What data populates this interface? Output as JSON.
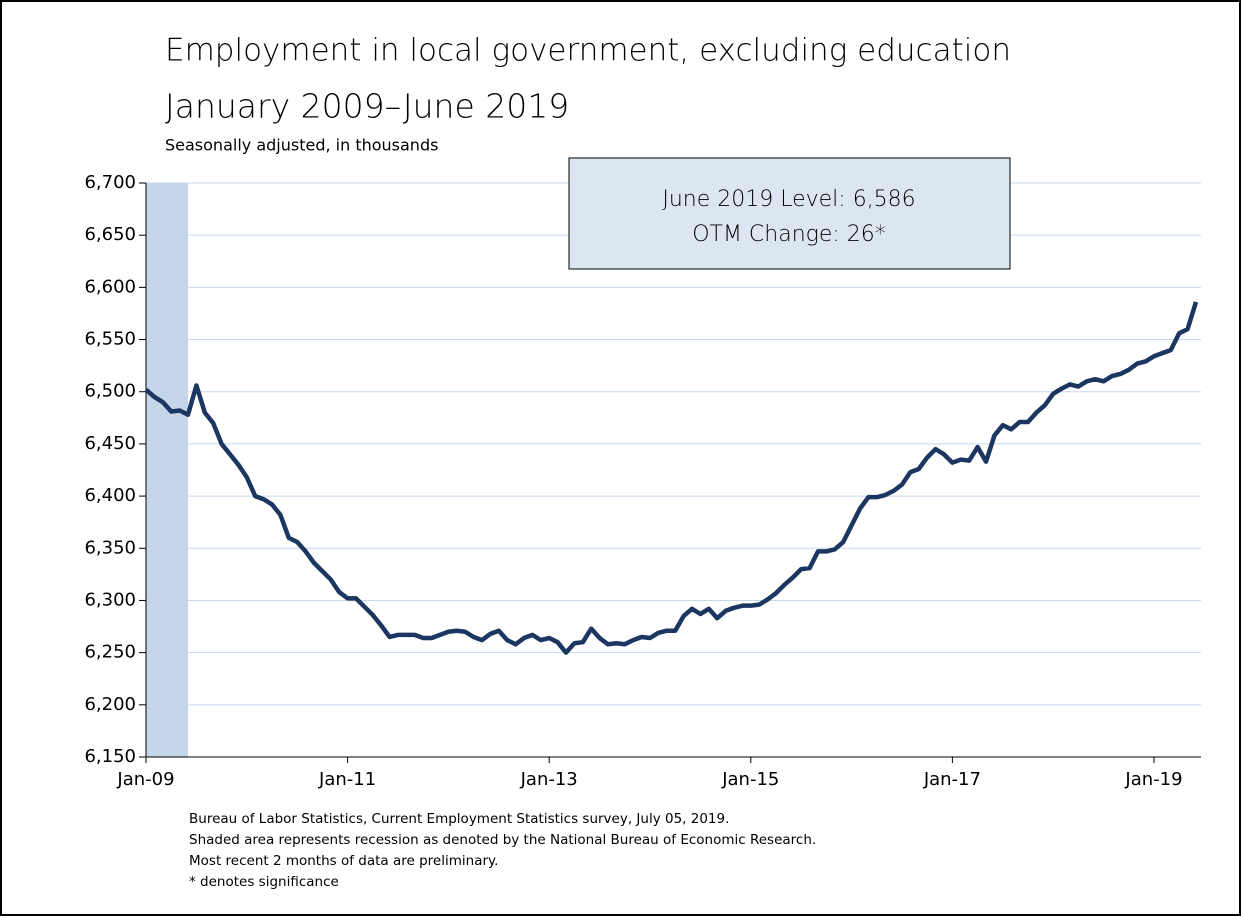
{
  "chart_data": {
    "type": "line",
    "title": "Employment in local government, excluding education",
    "subtitle": "January 2009–June 2019",
    "y_label": "Seasonally adjusted, in thousands",
    "annotations": [
      "June 2019 Level: 6,586",
      "OTM Change: 26*"
    ],
    "footnotes": [
      "Bureau of Labor Statistics, Current Employment Statistics survey, July 05, 2019.",
      "Shaded area represents recession as denoted by the National Bureau of Economic Research.",
      "Most recent 2 months of data are preliminary.",
      "* denotes significance"
    ],
    "categories": [
      "Jan-09",
      null,
      null,
      null,
      null,
      null,
      null,
      null,
      null,
      null,
      null,
      null,
      null,
      null,
      null,
      null,
      null,
      null,
      null,
      null,
      null,
      null,
      null,
      null,
      "Jan-11",
      null,
      null,
      null,
      null,
      null,
      null,
      null,
      null,
      null,
      null,
      null,
      null,
      null,
      null,
      null,
      null,
      null,
      null,
      null,
      null,
      null,
      null,
      null,
      "Jan-13",
      null,
      null,
      null,
      null,
      null,
      null,
      null,
      null,
      null,
      null,
      null,
      null,
      null,
      null,
      null,
      null,
      null,
      null,
      null,
      null,
      null,
      null,
      null,
      "Jan-15",
      null,
      null,
      null,
      null,
      null,
      null,
      null,
      null,
      null,
      null,
      null,
      null,
      null,
      null,
      null,
      null,
      null,
      null,
      null,
      null,
      null,
      null,
      null,
      "Jan-17",
      null,
      null,
      null,
      null,
      null,
      null,
      null,
      null,
      null,
      null,
      null,
      null,
      null,
      null,
      null,
      null,
      null,
      null,
      null,
      null,
      null,
      null,
      null,
      "Jan-19",
      null,
      null,
      null,
      null,
      null
    ],
    "series": [
      {
        "name": "Employment",
        "color": "#1b3660",
        "values": [
          6502,
          6495,
          6490,
          6481,
          6482,
          6478,
          6506,
          6480,
          6470,
          6450,
          6440,
          6430,
          6418,
          6400,
          6397,
          6392,
          6382,
          6360,
          6356,
          6347,
          6336,
          6328,
          6320,
          6308,
          6302,
          6302,
          6294,
          6286,
          6276,
          6265,
          6267,
          6267,
          6267,
          6264,
          6264,
          6267,
          6270,
          6271,
          6270,
          6265,
          6262,
          6268,
          6271,
          6262,
          6258,
          6264,
          6267,
          6262,
          6264,
          6260,
          6250,
          6259,
          6260,
          6273,
          6264,
          6258,
          6259,
          6258,
          6262,
          6265,
          6264,
          6269,
          6271,
          6271,
          6285,
          6292,
          6287,
          6292,
          6283,
          6290,
          6293,
          6295,
          6295,
          6296,
          6301,
          6307,
          6315,
          6322,
          6330,
          6331,
          6347,
          6347,
          6349,
          6356,
          6372,
          6388,
          6399,
          6399,
          6401,
          6405,
          6411,
          6423,
          6426,
          6437,
          6445,
          6440,
          6432,
          6435,
          6434,
          6447,
          6433,
          6458,
          6468,
          6464,
          6471,
          6471,
          6480,
          6487,
          6498,
          6503,
          6507,
          6505,
          6510,
          6512,
          6510,
          6515,
          6517,
          6521,
          6527,
          6529,
          6534,
          6537,
          6540,
          6556,
          6560,
          6586
        ]
      }
    ],
    "shading": [
      0,
      5
    ],
    "shading_color": "#c5d5ea",
    "ylim": [
      6150,
      6700
    ],
    "yticks": [
      {
        "value": 6150,
        "label": "6,150"
      },
      {
        "value": 6200,
        "label": "6,200"
      },
      {
        "value": 6250,
        "label": "6,250"
      },
      {
        "value": 6300,
        "label": "6,300"
      },
      {
        "value": 6350,
        "label": "6,350"
      },
      {
        "value": 6400,
        "label": "6,400"
      },
      {
        "value": 6450,
        "label": "6,450"
      },
      {
        "value": 6500,
        "label": "6,500"
      },
      {
        "value": 6550,
        "label": "6,550"
      },
      {
        "value": 6600,
        "label": "6,600"
      },
      {
        "value": 6650,
        "label": "6,650"
      },
      {
        "value": 6700,
        "label": "6,700"
      }
    ],
    "grid": true
  }
}
